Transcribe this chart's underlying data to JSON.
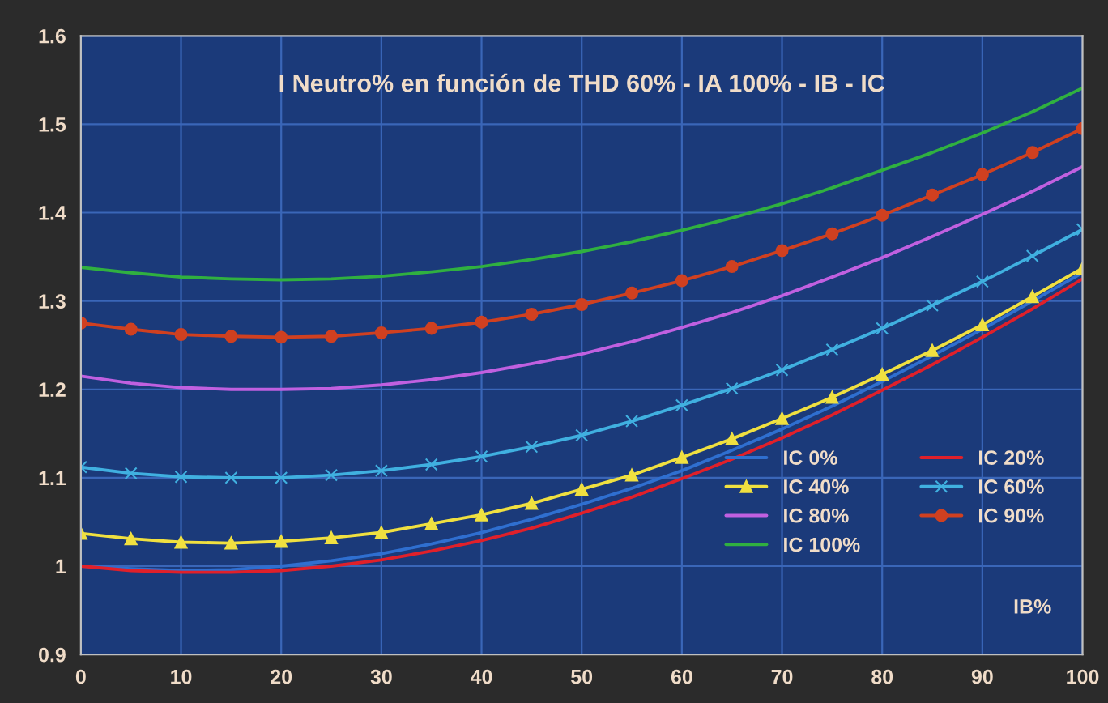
{
  "chart_data": {
    "type": "line",
    "title": "I Neutro% en función de THD 60% - IA 100% - IB - IC",
    "xlabel": "IB%",
    "x": [
      0,
      5,
      10,
      15,
      20,
      25,
      30,
      35,
      40,
      45,
      50,
      55,
      60,
      65,
      70,
      75,
      80,
      85,
      90,
      95,
      100
    ],
    "xlim": [
      0,
      100
    ],
    "xticks": [
      0,
      10,
      20,
      30,
      40,
      50,
      60,
      70,
      80,
      90,
      100
    ],
    "ylim": [
      0.9,
      1.6
    ],
    "yticks": [
      0.9,
      1,
      1.1,
      1.2,
      1.3,
      1.4,
      1.5,
      1.6
    ],
    "grid": true,
    "legend": "bottom right",
    "series": [
      {
        "name": "IC 0%",
        "color": "#2f6fd0",
        "marker": "none",
        "values": [
          1.0,
          0.997,
          0.995,
          0.996,
          1.0,
          1.006,
          1.014,
          1.025,
          1.038,
          1.053,
          1.07,
          1.088,
          1.108,
          1.131,
          1.155,
          1.181,
          1.209,
          1.238,
          1.268,
          1.3,
          1.332
        ]
      },
      {
        "name": "IC 20%",
        "color": "#e0202a",
        "marker": "none",
        "values": [
          1.0,
          0.995,
          0.993,
          0.993,
          0.995,
          1.0,
          1.007,
          1.017,
          1.029,
          1.043,
          1.06,
          1.078,
          1.099,
          1.121,
          1.145,
          1.171,
          1.199,
          1.228,
          1.259,
          1.291,
          1.325
        ]
      },
      {
        "name": "IC 40%",
        "color": "#f0e040",
        "marker": "triangle",
        "values": [
          1.037,
          1.031,
          1.027,
          1.026,
          1.028,
          1.032,
          1.038,
          1.048,
          1.058,
          1.071,
          1.087,
          1.103,
          1.123,
          1.144,
          1.167,
          1.191,
          1.217,
          1.244,
          1.273,
          1.305,
          1.337
        ]
      },
      {
        "name": "IC 60%",
        "color": "#40b0e0",
        "marker": "cross",
        "values": [
          1.112,
          1.105,
          1.101,
          1.1,
          1.1,
          1.103,
          1.108,
          1.115,
          1.124,
          1.135,
          1.148,
          1.164,
          1.182,
          1.201,
          1.222,
          1.245,
          1.269,
          1.295,
          1.322,
          1.351,
          1.381
        ]
      },
      {
        "name": "IC 80%",
        "color": "#c060e0",
        "marker": "none",
        "values": [
          1.215,
          1.207,
          1.202,
          1.2,
          1.2,
          1.201,
          1.205,
          1.211,
          1.219,
          1.229,
          1.24,
          1.254,
          1.27,
          1.287,
          1.306,
          1.327,
          1.349,
          1.373,
          1.398,
          1.424,
          1.452
        ]
      },
      {
        "name": "IC 90%",
        "color": "#d04020",
        "marker": "circle",
        "values": [
          1.275,
          1.268,
          1.262,
          1.26,
          1.259,
          1.26,
          1.264,
          1.269,
          1.276,
          1.285,
          1.296,
          1.309,
          1.323,
          1.339,
          1.357,
          1.376,
          1.397,
          1.42,
          1.443,
          1.468,
          1.495
        ]
      },
      {
        "name": "IC 100%",
        "color": "#30b040",
        "marker": "none",
        "values": [
          1.338,
          1.332,
          1.327,
          1.325,
          1.324,
          1.325,
          1.328,
          1.333,
          1.339,
          1.347,
          1.356,
          1.367,
          1.38,
          1.394,
          1.41,
          1.428,
          1.448,
          1.468,
          1.49,
          1.514,
          1.541
        ]
      }
    ]
  }
}
